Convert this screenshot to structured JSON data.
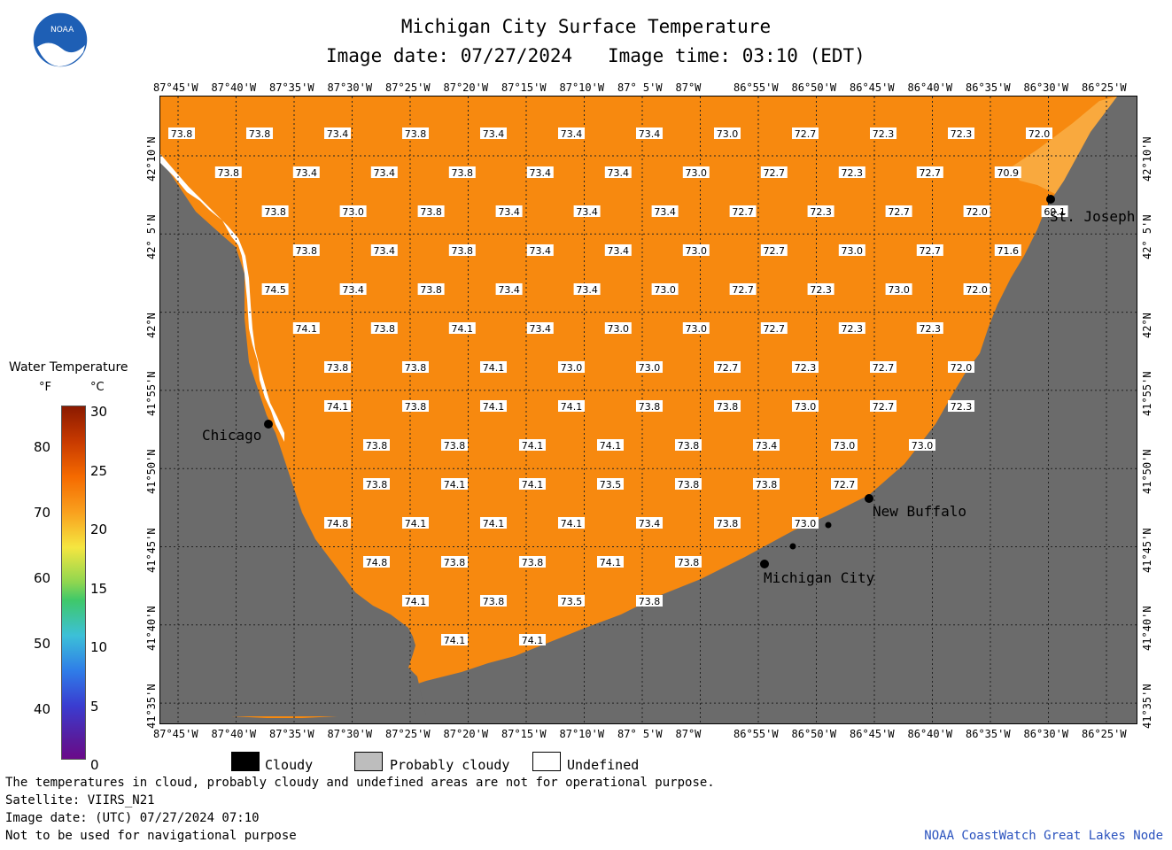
{
  "header": {
    "title": "Michigan City Surface Temperature",
    "date_label": "Image date: 07/27/2024",
    "time_label": "Image time: 03:10 (EDT)",
    "logo_text": "NOAA"
  },
  "axes": {
    "lon_ticks": [
      "87°45'W",
      "87°40'W",
      "87°35'W",
      "87°30'W",
      "87°25'W",
      "87°20'W",
      "87°15'W",
      "87°10'W",
      "87° 5'W",
      "87°W",
      "86°55'W",
      "86°50'W",
      "86°45'W",
      "86°40'W",
      "86°35'W",
      "86°30'W",
      "86°25'W"
    ],
    "lat_ticks": [
      "42°10'N",
      "42° 5'N",
      "42°N",
      "41°55'N",
      "41°50'N",
      "41°45'N",
      "41°40'N",
      "41°35'N"
    ]
  },
  "colorbar": {
    "title": "Water Temperature",
    "f_unit": "°F",
    "c_unit": "°C",
    "f_values": [
      "80",
      "70",
      "60",
      "50",
      "40"
    ],
    "c_values": [
      "30",
      "25",
      "20",
      "15",
      "10",
      "5",
      "0"
    ]
  },
  "cities": [
    {
      "name": "Chicago"
    },
    {
      "name": "St. Joseph"
    },
    {
      "name": "New Buffalo"
    },
    {
      "name": "Michigan City"
    }
  ],
  "temps": [
    [
      "73.8",
      "73.8",
      "73.4",
      "73.8",
      "73.4",
      "73.4",
      "73.4",
      "73.0",
      "72.7",
      "72.3",
      "72.3",
      "72.0"
    ],
    [
      "73.8",
      "73.4",
      "73.4",
      "73.8",
      "73.4",
      "73.4",
      "73.0",
      "72.7",
      "72.3",
      "72.7",
      "70.9"
    ],
    [
      "73.8",
      "73.0",
      "73.8",
      "73.4",
      "73.4",
      "73.4",
      "72.7",
      "72.3",
      "72.7",
      "72.0",
      "69.1"
    ],
    [
      "73.8",
      "73.4",
      "73.8",
      "73.4",
      "73.4",
      "73.0",
      "72.7",
      "73.0",
      "72.7",
      "71.6"
    ],
    [
      "74.5",
      "73.4",
      "73.8",
      "73.4",
      "73.4",
      "73.0",
      "72.7",
      "72.3",
      "73.0",
      "72.0"
    ],
    [
      "74.1",
      "73.8",
      "74.1",
      "73.4",
      "73.0",
      "73.0",
      "72.7",
      "72.3",
      "72.3"
    ],
    [
      "73.8",
      "73.8",
      "74.1",
      "73.0",
      "73.0",
      "72.7",
      "72.3",
      "72.7",
      "72.0"
    ],
    [
      "74.1",
      "73.8",
      "74.1",
      "74.1",
      "73.8",
      "73.8",
      "73.0",
      "72.7",
      "72.3"
    ],
    [
      "73.8",
      "73.8",
      "74.1",
      "74.1",
      "73.8",
      "73.4",
      "73.0",
      "73.0"
    ],
    [
      "73.8",
      "74.1",
      "74.1",
      "73.5",
      "73.8",
      "73.8",
      "72.7"
    ],
    [
      "74.8",
      "74.1",
      "74.1",
      "74.1",
      "73.4",
      "73.8",
      "73.0"
    ],
    [
      "74.8",
      "73.8",
      "73.8",
      "74.1",
      "73.8"
    ],
    [
      "74.1",
      "73.8",
      "73.5",
      "73.8"
    ],
    [
      "74.1",
      "74.1"
    ]
  ],
  "legend": {
    "cloudy": "Cloudy",
    "probably_cloudy": "Probably cloudy",
    "undefined": "Undefined"
  },
  "footer": {
    "line1": "The temperatures in cloud, probably cloudy and undefined areas are not for operational purpose.",
    "line2": "Satellite: VIIRS_N21",
    "line3": "Image date: (UTC) 07/27/2024  07:10",
    "line4": "Not to be used for navigational purpose",
    "credit": "NOAA CoastWatch Great Lakes Node"
  },
  "colors": {
    "water": "#f7890f",
    "land": "#6b6b6b",
    "credit": "#2a52be"
  }
}
